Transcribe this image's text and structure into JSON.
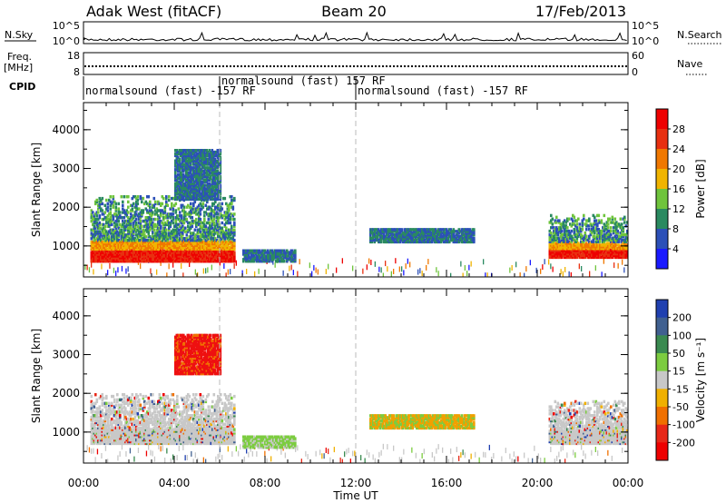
{
  "header": {
    "station": "Adak West (fitACF)",
    "beam": "Beam 20",
    "date": "17/Feb/2013"
  },
  "strip_labels": {
    "nsky": "N.Sky",
    "nsky_top": "10^5",
    "nsky_bottom": "10^0",
    "nsearch": "N.Search",
    "nsearch_top": "10^5",
    "nsearch_bottom": "10^0",
    "freq": "Freq.",
    "freq_unit": "[MHz]",
    "freq_top": "18",
    "freq_bottom": "8",
    "nave": "Nave",
    "nave_top": "60",
    "nave_bottom": "0",
    "cpid": "CPID"
  },
  "cpid_segments": [
    {
      "label": "normalsound (fast) -157 RF",
      "start_hour": 0
    },
    {
      "label": "normalsound (fast) 157 RF",
      "start_hour": 6
    },
    {
      "label": "normalsound (fast) -157 RF",
      "start_hour": 12
    }
  ],
  "chart_data": [
    {
      "type": "heatmap",
      "quantity": "Power",
      "ylabel": "Slant Range [km]",
      "yticks": [
        1000,
        2000,
        3000,
        4000
      ],
      "ylim": [
        200,
        4700
      ],
      "colorbar_label": "Power [dB]",
      "colorbar_ticks": [
        "4",
        "8",
        "12",
        "16",
        "20",
        "24",
        "28"
      ],
      "colors": [
        "#1a1aff",
        "#2c50b8",
        "#2a8a60",
        "#6fc43c",
        "#f0b400",
        "#f07800",
        "#e83010",
        "#ee0000"
      ],
      "regions": [
        {
          "t": [
            0.3,
            6.6
          ],
          "r": [
            600,
            2300
          ],
          "kind": "echo"
        },
        {
          "t": [
            4.0,
            6.0
          ],
          "r": [
            2200,
            3500
          ],
          "kind": "patch"
        },
        {
          "t": [
            7.0,
            9.3
          ],
          "r": [
            600,
            900
          ],
          "kind": "patch"
        },
        {
          "t": [
            12.6,
            17.2
          ],
          "r": [
            1100,
            1450
          ],
          "kind": "patch"
        },
        {
          "t": [
            20.5,
            24.0
          ],
          "r": [
            700,
            1800
          ],
          "kind": "echo"
        }
      ]
    },
    {
      "type": "heatmap",
      "quantity": "Velocity",
      "ylabel": "Slant Range [km]",
      "yticks": [
        1000,
        2000,
        3000,
        4000
      ],
      "ylim": [
        200,
        4700
      ],
      "colorbar_label": "Velocity [m s⁻¹]",
      "colorbar_ticks": [
        "200",
        "100",
        "50",
        "15",
        "-15",
        "-50",
        "-100",
        "-200"
      ],
      "colors": [
        "#2040b0",
        "#406090",
        "#3a8a50",
        "#7ccc40",
        "#c8c8c8",
        "#f0b000",
        "#f07000",
        "#e82818",
        "#ee0000"
      ],
      "regions": [
        {
          "t": [
            0.3,
            6.6
          ],
          "r": [
            700,
            2000
          ],
          "kind": "gray"
        },
        {
          "t": [
            4.0,
            6.0
          ],
          "r": [
            2500,
            3500
          ],
          "kind": "red"
        },
        {
          "t": [
            7.0,
            9.3
          ],
          "r": [
            600,
            900
          ],
          "kind": "green"
        },
        {
          "t": [
            12.6,
            17.2
          ],
          "r": [
            1100,
            1450
          ],
          "kind": "orange"
        },
        {
          "t": [
            20.5,
            24.0
          ],
          "r": [
            700,
            1800
          ],
          "kind": "gray"
        }
      ]
    }
  ],
  "time_axis": {
    "xlabel": "Time UT",
    "ticks": [
      "00:00",
      "04:00",
      "08:00",
      "12:00",
      "16:00",
      "20:00",
      "00:00"
    ],
    "xlim_hours": [
      0,
      24
    ]
  }
}
